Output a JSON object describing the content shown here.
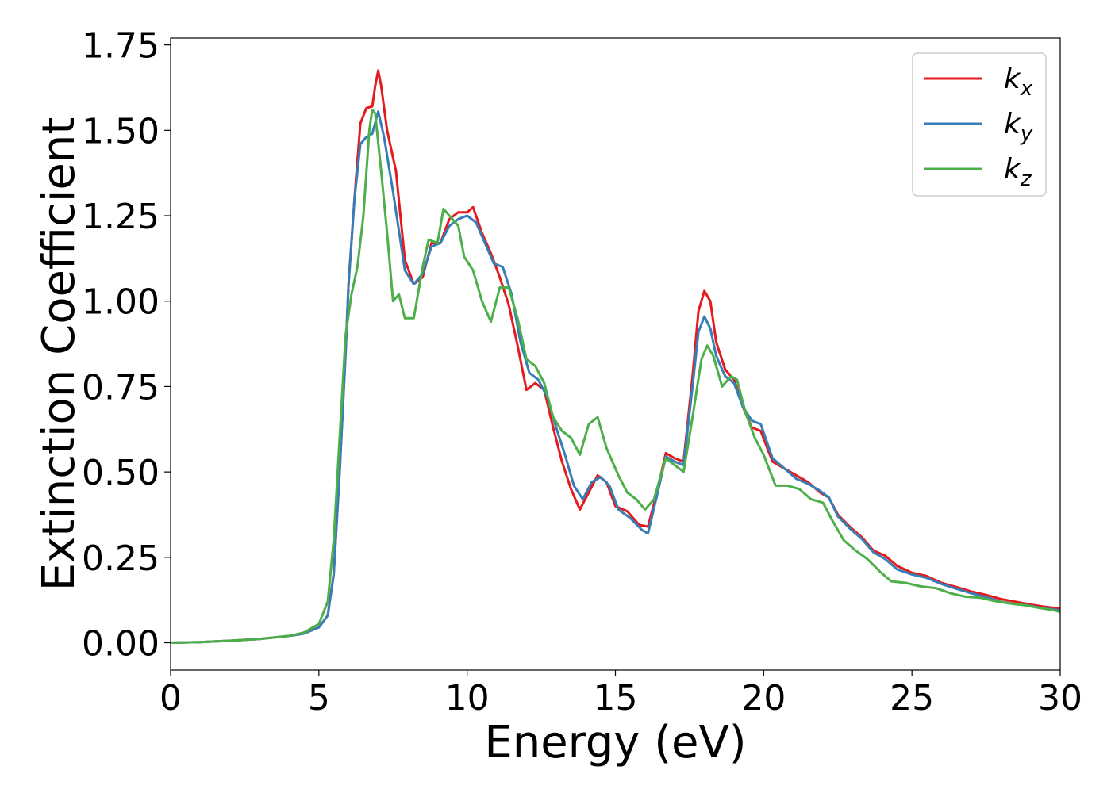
{
  "chart_data": {
    "type": "line",
    "title": "",
    "xlabel": "Energy (eV)",
    "ylabel": "Extinction Coefficient",
    "xlim": [
      0,
      30
    ],
    "ylim": [
      -0.08,
      1.77
    ],
    "xticks": [
      0,
      5,
      10,
      15,
      20,
      25,
      30
    ],
    "yticks": [
      0.0,
      0.25,
      0.5,
      0.75,
      1.0,
      1.25,
      1.5,
      1.75
    ],
    "xtick_labels": [
      "0",
      "5",
      "10",
      "15",
      "20",
      "25",
      "30"
    ],
    "ytick_labels": [
      "0.00",
      "0.25",
      "0.50",
      "0.75",
      "1.00",
      "1.25",
      "1.50",
      "1.75"
    ],
    "grid": false,
    "legend_position": "top-right",
    "series": [
      {
        "name": "k_x",
        "legend_base": "k",
        "legend_sub": "x",
        "color": "#e41a1c",
        "points": [
          [
            0,
            0.0
          ],
          [
            1,
            0.002
          ],
          [
            2,
            0.006
          ],
          [
            3,
            0.011
          ],
          [
            4,
            0.02
          ],
          [
            4.5,
            0.027
          ],
          [
            5,
            0.045
          ],
          [
            5.3,
            0.08
          ],
          [
            5.5,
            0.2
          ],
          [
            5.7,
            0.5
          ],
          [
            5.9,
            0.85
          ],
          [
            6.0,
            1.05
          ],
          [
            6.2,
            1.3
          ],
          [
            6.4,
            1.52
          ],
          [
            6.6,
            1.565
          ],
          [
            6.8,
            1.57
          ],
          [
            6.9,
            1.63
          ],
          [
            7.0,
            1.675
          ],
          [
            7.1,
            1.63
          ],
          [
            7.3,
            1.5
          ],
          [
            7.6,
            1.38
          ],
          [
            7.9,
            1.12
          ],
          [
            8.2,
            1.05
          ],
          [
            8.5,
            1.07
          ],
          [
            8.8,
            1.17
          ],
          [
            9.1,
            1.17
          ],
          [
            9.4,
            1.24
          ],
          [
            9.7,
            1.26
          ],
          [
            10.0,
            1.26
          ],
          [
            10.2,
            1.275
          ],
          [
            10.5,
            1.2
          ],
          [
            10.8,
            1.14
          ],
          [
            11.1,
            1.07
          ],
          [
            11.4,
            0.99
          ],
          [
            11.7,
            0.87
          ],
          [
            12.0,
            0.74
          ],
          [
            12.3,
            0.76
          ],
          [
            12.6,
            0.74
          ],
          [
            12.9,
            0.63
          ],
          [
            13.2,
            0.53
          ],
          [
            13.5,
            0.45
          ],
          [
            13.8,
            0.39
          ],
          [
            14.1,
            0.44
          ],
          [
            14.4,
            0.49
          ],
          [
            14.7,
            0.47
          ],
          [
            15.0,
            0.4
          ],
          [
            15.4,
            0.385
          ],
          [
            15.8,
            0.345
          ],
          [
            16.1,
            0.34
          ],
          [
            16.4,
            0.44
          ],
          [
            16.7,
            0.555
          ],
          [
            17.0,
            0.54
          ],
          [
            17.3,
            0.53
          ],
          [
            17.6,
            0.78
          ],
          [
            17.8,
            0.97
          ],
          [
            18.0,
            1.03
          ],
          [
            18.2,
            1.0
          ],
          [
            18.4,
            0.88
          ],
          [
            18.7,
            0.8
          ],
          [
            19.0,
            0.77
          ],
          [
            19.3,
            0.69
          ],
          [
            19.6,
            0.63
          ],
          [
            19.9,
            0.62
          ],
          [
            20.3,
            0.53
          ],
          [
            20.7,
            0.51
          ],
          [
            21.1,
            0.49
          ],
          [
            21.5,
            0.47
          ],
          [
            21.9,
            0.44
          ],
          [
            22.2,
            0.425
          ],
          [
            22.5,
            0.375
          ],
          [
            22.9,
            0.34
          ],
          [
            23.3,
            0.31
          ],
          [
            23.7,
            0.27
          ],
          [
            24.1,
            0.255
          ],
          [
            24.5,
            0.225
          ],
          [
            25,
            0.205
          ],
          [
            25.5,
            0.195
          ],
          [
            26,
            0.175
          ],
          [
            26.5,
            0.163
          ],
          [
            27,
            0.15
          ],
          [
            27.5,
            0.14
          ],
          [
            28,
            0.128
          ],
          [
            28.5,
            0.12
          ],
          [
            29,
            0.112
          ],
          [
            29.5,
            0.105
          ],
          [
            30,
            0.1
          ]
        ]
      },
      {
        "name": "k_y",
        "legend_base": "k",
        "legend_sub": "y",
        "color": "#377eb8",
        "points": [
          [
            0,
            0.0
          ],
          [
            1,
            0.002
          ],
          [
            2,
            0.006
          ],
          [
            3,
            0.011
          ],
          [
            4,
            0.02
          ],
          [
            4.5,
            0.027
          ],
          [
            5,
            0.045
          ],
          [
            5.3,
            0.08
          ],
          [
            5.5,
            0.2
          ],
          [
            5.7,
            0.5
          ],
          [
            5.9,
            0.85
          ],
          [
            6.0,
            1.05
          ],
          [
            6.2,
            1.3
          ],
          [
            6.4,
            1.46
          ],
          [
            6.6,
            1.48
          ],
          [
            6.8,
            1.49
          ],
          [
            7.0,
            1.555
          ],
          [
            7.2,
            1.48
          ],
          [
            7.5,
            1.32
          ],
          [
            7.9,
            1.09
          ],
          [
            8.2,
            1.05
          ],
          [
            8.5,
            1.08
          ],
          [
            8.8,
            1.16
          ],
          [
            9.1,
            1.17
          ],
          [
            9.4,
            1.22
          ],
          [
            9.7,
            1.24
          ],
          [
            10.0,
            1.25
          ],
          [
            10.3,
            1.23
          ],
          [
            10.6,
            1.17
          ],
          [
            10.9,
            1.11
          ],
          [
            11.2,
            1.1
          ],
          [
            11.5,
            1.02
          ],
          [
            11.8,
            0.88
          ],
          [
            12.1,
            0.79
          ],
          [
            12.4,
            0.77
          ],
          [
            12.7,
            0.72
          ],
          [
            13.0,
            0.63
          ],
          [
            13.3,
            0.55
          ],
          [
            13.6,
            0.46
          ],
          [
            13.9,
            0.42
          ],
          [
            14.2,
            0.47
          ],
          [
            14.5,
            0.485
          ],
          [
            14.8,
            0.46
          ],
          [
            15.1,
            0.39
          ],
          [
            15.5,
            0.365
          ],
          [
            15.9,
            0.33
          ],
          [
            16.1,
            0.32
          ],
          [
            16.4,
            0.43
          ],
          [
            16.7,
            0.545
          ],
          [
            17.0,
            0.53
          ],
          [
            17.3,
            0.52
          ],
          [
            17.6,
            0.75
          ],
          [
            17.8,
            0.91
          ],
          [
            18.0,
            0.955
          ],
          [
            18.2,
            0.92
          ],
          [
            18.4,
            0.84
          ],
          [
            18.7,
            0.78
          ],
          [
            19.0,
            0.76
          ],
          [
            19.3,
            0.69
          ],
          [
            19.6,
            0.65
          ],
          [
            19.9,
            0.64
          ],
          [
            20.3,
            0.54
          ],
          [
            20.7,
            0.51
          ],
          [
            21.1,
            0.48
          ],
          [
            21.5,
            0.465
          ],
          [
            21.9,
            0.445
          ],
          [
            22.2,
            0.425
          ],
          [
            22.5,
            0.37
          ],
          [
            22.9,
            0.335
          ],
          [
            23.3,
            0.305
          ],
          [
            23.7,
            0.265
          ],
          [
            24.1,
            0.245
          ],
          [
            24.5,
            0.215
          ],
          [
            25,
            0.2
          ],
          [
            25.5,
            0.19
          ],
          [
            26,
            0.172
          ],
          [
            26.5,
            0.158
          ],
          [
            27,
            0.145
          ],
          [
            27.5,
            0.133
          ],
          [
            28,
            0.12
          ],
          [
            28.5,
            0.113
          ],
          [
            29,
            0.108
          ],
          [
            29.5,
            0.1
          ],
          [
            30,
            0.095
          ]
        ]
      },
      {
        "name": "k_z",
        "legend_base": "k",
        "legend_sub": "z",
        "color": "#4daf4a",
        "points": [
          [
            0,
            0.0
          ],
          [
            1,
            0.002
          ],
          [
            2,
            0.006
          ],
          [
            3,
            0.011
          ],
          [
            4,
            0.02
          ],
          [
            4.5,
            0.03
          ],
          [
            5,
            0.055
          ],
          [
            5.3,
            0.12
          ],
          [
            5.5,
            0.3
          ],
          [
            5.7,
            0.6
          ],
          [
            5.9,
            0.9
          ],
          [
            6.1,
            1.02
          ],
          [
            6.3,
            1.1
          ],
          [
            6.5,
            1.25
          ],
          [
            6.7,
            1.5
          ],
          [
            6.8,
            1.56
          ],
          [
            6.9,
            1.55
          ],
          [
            7.1,
            1.38
          ],
          [
            7.3,
            1.2
          ],
          [
            7.5,
            1.0
          ],
          [
            7.7,
            1.02
          ],
          [
            7.9,
            0.95
          ],
          [
            8.2,
            0.95
          ],
          [
            8.5,
            1.1
          ],
          [
            8.7,
            1.18
          ],
          [
            9.0,
            1.17
          ],
          [
            9.2,
            1.27
          ],
          [
            9.5,
            1.24
          ],
          [
            9.7,
            1.22
          ],
          [
            9.9,
            1.13
          ],
          [
            10.2,
            1.09
          ],
          [
            10.5,
            1.0
          ],
          [
            10.8,
            0.94
          ],
          [
            11.1,
            1.04
          ],
          [
            11.4,
            1.04
          ],
          [
            11.7,
            0.95
          ],
          [
            12.0,
            0.83
          ],
          [
            12.3,
            0.81
          ],
          [
            12.6,
            0.76
          ],
          [
            12.9,
            0.66
          ],
          [
            13.2,
            0.62
          ],
          [
            13.5,
            0.6
          ],
          [
            13.8,
            0.55
          ],
          [
            14.1,
            0.64
          ],
          [
            14.4,
            0.66
          ],
          [
            14.7,
            0.57
          ],
          [
            15.1,
            0.49
          ],
          [
            15.4,
            0.44
          ],
          [
            15.7,
            0.42
          ],
          [
            16.0,
            0.39
          ],
          [
            16.3,
            0.42
          ],
          [
            16.7,
            0.54
          ],
          [
            17.0,
            0.52
          ],
          [
            17.3,
            0.5
          ],
          [
            17.6,
            0.66
          ],
          [
            17.9,
            0.83
          ],
          [
            18.1,
            0.87
          ],
          [
            18.3,
            0.84
          ],
          [
            18.6,
            0.75
          ],
          [
            18.9,
            0.78
          ],
          [
            19.1,
            0.77
          ],
          [
            19.4,
            0.67
          ],
          [
            19.7,
            0.6
          ],
          [
            20.0,
            0.55
          ],
          [
            20.4,
            0.46
          ],
          [
            20.8,
            0.46
          ],
          [
            21.2,
            0.45
          ],
          [
            21.6,
            0.42
          ],
          [
            22.0,
            0.41
          ],
          [
            22.3,
            0.36
          ],
          [
            22.7,
            0.3
          ],
          [
            23.1,
            0.27
          ],
          [
            23.5,
            0.245
          ],
          [
            23.9,
            0.21
          ],
          [
            24.3,
            0.18
          ],
          [
            24.8,
            0.175
          ],
          [
            25.3,
            0.165
          ],
          [
            25.8,
            0.16
          ],
          [
            26.3,
            0.145
          ],
          [
            26.8,
            0.135
          ],
          [
            27.3,
            0.132
          ],
          [
            27.8,
            0.122
          ],
          [
            28.3,
            0.115
          ],
          [
            28.8,
            0.11
          ],
          [
            29.3,
            0.102
          ],
          [
            29.8,
            0.095
          ],
          [
            30,
            0.09
          ]
        ]
      }
    ]
  }
}
